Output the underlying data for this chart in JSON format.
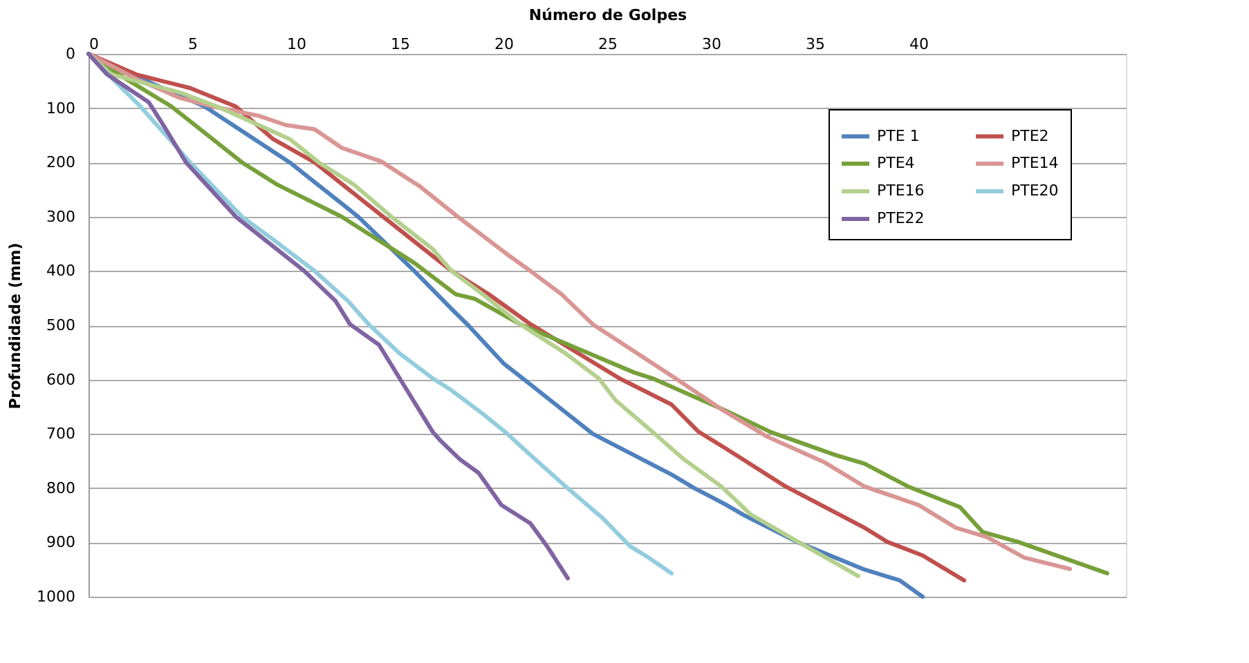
{
  "chart_data": {
    "type": "line",
    "xlabel": "Número de Golpes",
    "ylabel": "Profundidade (mm)",
    "xlim": [
      0,
      50
    ],
    "xticks": [
      0,
      5,
      10,
      15,
      20,
      25,
      30,
      35,
      40
    ],
    "ylim": [
      1000,
      0
    ],
    "yticks": [
      0,
      100,
      200,
      300,
      400,
      500,
      600,
      700,
      800,
      900,
      1000
    ],
    "grid": "y",
    "legend": "top right",
    "marker": "none",
    "line_style": "solid",
    "series": [
      {
        "name": "PTE 1",
        "color": "#4f81bd",
        "x": [
          0,
          2.5,
          5.6,
          9.7,
          13.0,
          15.7,
          17.5,
          18.3,
          20.0,
          21.0,
          24.3,
          28.1,
          29.2,
          30.7,
          31.6,
          34.2,
          37.4,
          39.1,
          40.2
        ],
        "values": [
          0,
          45,
          97,
          200,
          300,
          400,
          470,
          500,
          570,
          600,
          700,
          775,
          800,
          830,
          850,
          900,
          950,
          970,
          1000
        ]
      },
      {
        "name": "PTE2",
        "color": "#c0504d",
        "x": [
          0,
          2.3,
          4.9,
          7.1,
          8.9,
          10.9,
          14.2,
          17.5,
          19.3,
          21.3,
          25.6,
          28.1,
          29.4,
          30.8,
          33.6,
          37.4,
          38.5,
          40.2,
          42.2
        ],
        "values": [
          0,
          38,
          63,
          97,
          157,
          200,
          300,
          400,
          443,
          498,
          598,
          646,
          696,
          729,
          797,
          873,
          899,
          924,
          970
        ]
      },
      {
        "name": "PTE4",
        "color": "#77a03a",
        "x": [
          0,
          1.8,
          4.0,
          7.4,
          9.1,
          12.2,
          15.7,
          17.7,
          18.6,
          20.8,
          26.3,
          27.2,
          30.7,
          32.9,
          36.0,
          37.4,
          39.5,
          42.0,
          43.1,
          44.8,
          49.1
        ],
        "values": [
          0,
          46,
          97,
          200,
          241,
          300,
          385,
          443,
          451,
          498,
          587,
          598,
          657,
          697,
          739,
          755,
          797,
          835,
          881,
          899,
          957
        ]
      },
      {
        "name": "PTE14",
        "color": "#d99694",
        "x": [
          0,
          2.3,
          4.4,
          6.0,
          8.2,
          9.5,
          10.9,
          12.2,
          14.1,
          16.0,
          17.8,
          20.1,
          21.3,
          22.8,
          24.3,
          28.3,
          30.6,
          32.7,
          35.5,
          37.4,
          40.0,
          41.8,
          43.3,
          45.1,
          47.3
        ],
        "values": [
          0,
          46,
          81,
          97,
          114,
          131,
          139,
          173,
          198,
          245,
          300,
          367,
          400,
          443,
          498,
          598,
          657,
          705,
          753,
          797,
          831,
          873,
          890,
          928,
          949
        ]
      },
      {
        "name": "PTE16",
        "color": "#b5d08e",
        "x": [
          0,
          1.1,
          4.4,
          6.2,
          8.2,
          9.7,
          11.1,
          12.8,
          14.6,
          16.6,
          17.5,
          19.0,
          20.8,
          23.0,
          24.6,
          25.4,
          27.2,
          28.7,
          30.5,
          31.9,
          34.2,
          37.1
        ],
        "values": [
          0,
          38,
          71,
          97,
          131,
          157,
          200,
          241,
          300,
          360,
          400,
          443,
          498,
          552,
          598,
          638,
          697,
          747,
          797,
          848,
          899,
          962
        ]
      },
      {
        "name": "PTE20",
        "color": "#93cddd",
        "x": [
          0,
          1.0,
          2.5,
          4.9,
          7.4,
          8.9,
          10.9,
          12.5,
          13.5,
          15.0,
          16.6,
          17.5,
          19.0,
          20.1,
          21.3,
          23.0,
          24.8,
          26.1,
          27.0,
          28.1
        ],
        "values": [
          0,
          40,
          97,
          200,
          300,
          342,
          400,
          455,
          498,
          552,
          598,
          620,
          663,
          697,
          739,
          797,
          856,
          907,
          928,
          957
        ]
      },
      {
        "name": "PTE22",
        "color": "#8064a2",
        "x": [
          0,
          0.9,
          2.9,
          3.6,
          4.7,
          7.1,
          10.4,
          11.9,
          12.6,
          14.0,
          15.0,
          16.6,
          17.0,
          17.9,
          18.8,
          19.9,
          21.3,
          22.1,
          23.1
        ],
        "values": [
          0,
          38,
          89,
          131,
          200,
          300,
          400,
          455,
          498,
          536,
          598,
          697,
          714,
          747,
          772,
          831,
          865,
          907,
          966
        ]
      }
    ]
  }
}
